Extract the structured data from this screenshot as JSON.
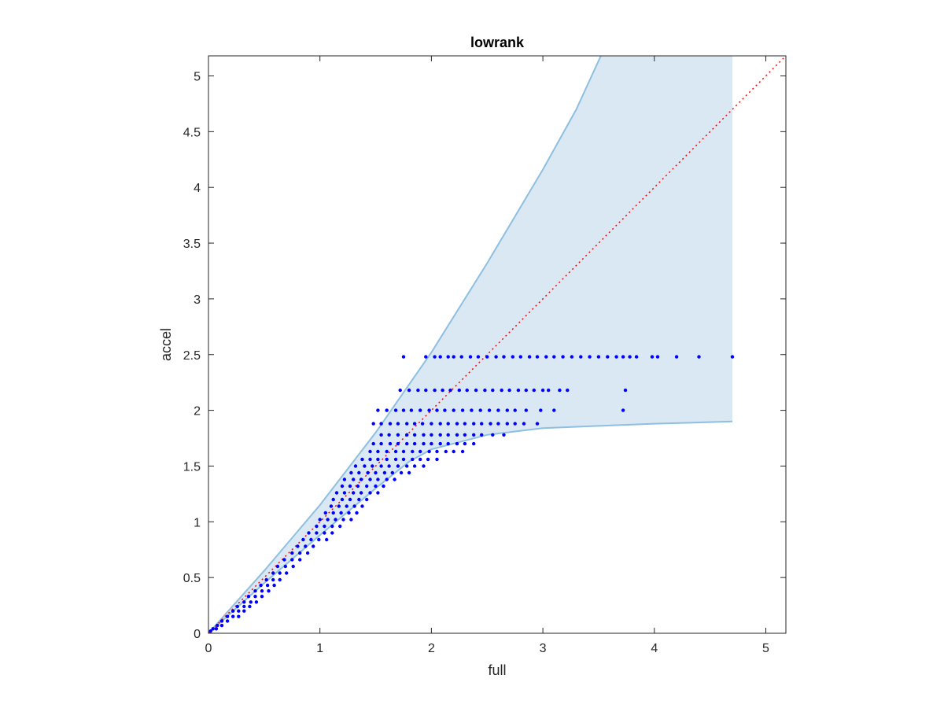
{
  "chart_data": {
    "type": "scatter",
    "title": "lowrank",
    "xlabel": "full",
    "ylabel": "accel",
    "xlim": [
      0,
      5.18
    ],
    "ylim": [
      0,
      5.18
    ],
    "xticks": [
      "0",
      "1",
      "2",
      "3",
      "4",
      "5"
    ],
    "yticks": [
      "0",
      "0.5",
      "1",
      "1.5",
      "2",
      "2.5",
      "3",
      "3.5",
      "4",
      "4.5",
      "5"
    ],
    "xtick_values": [
      0,
      1,
      2,
      3,
      4,
      5
    ],
    "ytick_values": [
      0,
      0.5,
      1,
      1.5,
      2,
      2.5,
      3,
      3.5,
      4,
      4.5,
      5
    ],
    "grid": false,
    "colors": {
      "points": "#0000ff",
      "band_fill": "#d9e8f3",
      "band_edge": "#8fbfe0",
      "reference_line": "#ff0000",
      "axes": "#262626"
    },
    "reference_line": {
      "style": "dotted",
      "from": [
        0,
        0
      ],
      "to": [
        5.18,
        5.18
      ]
    },
    "band": {
      "upper": [
        [
          0,
          0
        ],
        [
          0.5,
          0.56
        ],
        [
          1,
          1.15
        ],
        [
          1.5,
          1.8
        ],
        [
          2,
          2.52
        ],
        [
          2.5,
          3.32
        ],
        [
          3,
          4.16
        ],
        [
          3.3,
          4.7
        ],
        [
          3.52,
          5.18
        ]
      ],
      "lower": [
        [
          0,
          0
        ],
        [
          0.5,
          0.45
        ],
        [
          1,
          0.88
        ],
        [
          1.5,
          1.3
        ],
        [
          1.8,
          1.54
        ],
        [
          2,
          1.65
        ],
        [
          2.5,
          1.78
        ],
        [
          3,
          1.84
        ],
        [
          3.5,
          1.86
        ],
        [
          4,
          1.88
        ],
        [
          4.7,
          1.9
        ]
      ],
      "right_edge_x": 4.7
    },
    "series": [
      {
        "values": [
          [
            1.75,
            2.48
          ],
          [
            1.95,
            2.48
          ],
          [
            2.03,
            2.48
          ],
          [
            2.08,
            2.48
          ],
          [
            2.15,
            2.48
          ],
          [
            2.2,
            2.48
          ],
          [
            2.27,
            2.48
          ],
          [
            2.35,
            2.48
          ],
          [
            2.42,
            2.48
          ],
          [
            2.5,
            2.48
          ],
          [
            2.58,
            2.48
          ],
          [
            2.65,
            2.48
          ],
          [
            2.73,
            2.48
          ],
          [
            2.8,
            2.48
          ],
          [
            2.88,
            2.48
          ],
          [
            2.95,
            2.48
          ],
          [
            3.03,
            2.48
          ],
          [
            3.1,
            2.48
          ],
          [
            3.18,
            2.48
          ],
          [
            3.26,
            2.48
          ],
          [
            3.34,
            2.48
          ],
          [
            3.42,
            2.48
          ],
          [
            3.5,
            2.48
          ],
          [
            3.58,
            2.48
          ],
          [
            3.66,
            2.48
          ],
          [
            3.72,
            2.48
          ],
          [
            3.78,
            2.48
          ],
          [
            3.84,
            2.48
          ],
          [
            3.98,
            2.48
          ],
          [
            4.03,
            2.48
          ],
          [
            4.2,
            2.48
          ],
          [
            4.4,
            2.48
          ],
          [
            4.7,
            2.48
          ],
          [
            1.72,
            2.18
          ],
          [
            1.8,
            2.18
          ],
          [
            1.88,
            2.18
          ],
          [
            1.95,
            2.18
          ],
          [
            2.03,
            2.18
          ],
          [
            2.1,
            2.18
          ],
          [
            2.17,
            2.18
          ],
          [
            2.25,
            2.18
          ],
          [
            2.32,
            2.18
          ],
          [
            2.4,
            2.18
          ],
          [
            2.48,
            2.18
          ],
          [
            2.55,
            2.18
          ],
          [
            2.63,
            2.18
          ],
          [
            2.7,
            2.18
          ],
          [
            2.78,
            2.18
          ],
          [
            2.85,
            2.18
          ],
          [
            2.92,
            2.18
          ],
          [
            3.0,
            2.18
          ],
          [
            3.05,
            2.18
          ],
          [
            3.15,
            2.18
          ],
          [
            3.22,
            2.18
          ],
          [
            3.74,
            2.18
          ],
          [
            1.52,
            2.0
          ],
          [
            1.6,
            2.0
          ],
          [
            1.68,
            2.0
          ],
          [
            1.75,
            2.0
          ],
          [
            1.82,
            2.0
          ],
          [
            1.9,
            2.0
          ],
          [
            1.98,
            2.0
          ],
          [
            2.05,
            2.0
          ],
          [
            2.12,
            2.0
          ],
          [
            2.2,
            2.0
          ],
          [
            2.28,
            2.0
          ],
          [
            2.36,
            2.0
          ],
          [
            2.44,
            2.0
          ],
          [
            2.52,
            2.0
          ],
          [
            2.6,
            2.0
          ],
          [
            2.68,
            2.0
          ],
          [
            2.75,
            2.0
          ],
          [
            2.85,
            2.0
          ],
          [
            2.98,
            2.0
          ],
          [
            3.1,
            2.0
          ],
          [
            3.72,
            2.0
          ],
          [
            1.48,
            1.88
          ],
          [
            1.55,
            1.88
          ],
          [
            1.63,
            1.88
          ],
          [
            1.7,
            1.88
          ],
          [
            1.78,
            1.88
          ],
          [
            1.85,
            1.88
          ],
          [
            1.92,
            1.88
          ],
          [
            2.0,
            1.88
          ],
          [
            2.08,
            1.88
          ],
          [
            2.15,
            1.88
          ],
          [
            2.23,
            1.88
          ],
          [
            2.3,
            1.88
          ],
          [
            2.38,
            1.88
          ],
          [
            2.45,
            1.88
          ],
          [
            2.53,
            1.88
          ],
          [
            2.6,
            1.88
          ],
          [
            2.68,
            1.88
          ],
          [
            2.75,
            1.88
          ],
          [
            2.83,
            1.88
          ],
          [
            2.95,
            1.88
          ],
          [
            1.55,
            1.78
          ],
          [
            1.62,
            1.78
          ],
          [
            1.7,
            1.78
          ],
          [
            1.78,
            1.78
          ],
          [
            1.85,
            1.78
          ],
          [
            1.93,
            1.78
          ],
          [
            2.0,
            1.78
          ],
          [
            2.08,
            1.78
          ],
          [
            2.15,
            1.78
          ],
          [
            2.23,
            1.78
          ],
          [
            2.3,
            1.78
          ],
          [
            2.38,
            1.78
          ],
          [
            2.45,
            1.78
          ],
          [
            2.55,
            1.78
          ],
          [
            2.65,
            1.78
          ],
          [
            1.48,
            1.7
          ],
          [
            1.55,
            1.7
          ],
          [
            1.63,
            1.7
          ],
          [
            1.7,
            1.7
          ],
          [
            1.78,
            1.7
          ],
          [
            1.85,
            1.7
          ],
          [
            1.93,
            1.7
          ],
          [
            2.0,
            1.7
          ],
          [
            2.08,
            1.7
          ],
          [
            2.15,
            1.7
          ],
          [
            2.23,
            1.7
          ],
          [
            2.3,
            1.7
          ],
          [
            2.38,
            1.7
          ],
          [
            1.45,
            1.63
          ],
          [
            1.52,
            1.63
          ],
          [
            1.6,
            1.63
          ],
          [
            1.68,
            1.63
          ],
          [
            1.75,
            1.63
          ],
          [
            1.83,
            1.63
          ],
          [
            1.9,
            1.63
          ],
          [
            1.98,
            1.63
          ],
          [
            2.05,
            1.63
          ],
          [
            2.13,
            1.63
          ],
          [
            2.2,
            1.63
          ],
          [
            2.28,
            1.63
          ],
          [
            1.38,
            1.56
          ],
          [
            1.45,
            1.56
          ],
          [
            1.52,
            1.56
          ],
          [
            1.6,
            1.56
          ],
          [
            1.68,
            1.56
          ],
          [
            1.75,
            1.56
          ],
          [
            1.83,
            1.56
          ],
          [
            1.9,
            1.56
          ],
          [
            1.97,
            1.56
          ],
          [
            2.05,
            1.56
          ],
          [
            1.32,
            1.5
          ],
          [
            1.4,
            1.5
          ],
          [
            1.47,
            1.5
          ],
          [
            1.55,
            1.5
          ],
          [
            1.62,
            1.5
          ],
          [
            1.7,
            1.5
          ],
          [
            1.78,
            1.5
          ],
          [
            1.85,
            1.5
          ],
          [
            1.93,
            1.5
          ],
          [
            1.28,
            1.44
          ],
          [
            1.35,
            1.44
          ],
          [
            1.43,
            1.44
          ],
          [
            1.5,
            1.44
          ],
          [
            1.58,
            1.44
          ],
          [
            1.65,
            1.44
          ],
          [
            1.73,
            1.44
          ],
          [
            1.8,
            1.44
          ],
          [
            1.22,
            1.38
          ],
          [
            1.3,
            1.38
          ],
          [
            1.37,
            1.38
          ],
          [
            1.45,
            1.38
          ],
          [
            1.52,
            1.38
          ],
          [
            1.6,
            1.38
          ],
          [
            1.67,
            1.38
          ],
          [
            1.2,
            1.32
          ],
          [
            1.27,
            1.32
          ],
          [
            1.34,
            1.32
          ],
          [
            1.42,
            1.32
          ],
          [
            1.5,
            1.32
          ],
          [
            1.57,
            1.32
          ],
          [
            1.15,
            1.26
          ],
          [
            1.22,
            1.26
          ],
          [
            1.3,
            1.26
          ],
          [
            1.37,
            1.26
          ],
          [
            1.45,
            1.26
          ],
          [
            1.52,
            1.26
          ],
          [
            1.12,
            1.2
          ],
          [
            1.2,
            1.2
          ],
          [
            1.27,
            1.2
          ],
          [
            1.35,
            1.2
          ],
          [
            1.42,
            1.2
          ],
          [
            1.1,
            1.14
          ],
          [
            1.17,
            1.14
          ],
          [
            1.24,
            1.14
          ],
          [
            1.31,
            1.14
          ],
          [
            1.38,
            1.14
          ],
          [
            1.05,
            1.08
          ],
          [
            1.12,
            1.08
          ],
          [
            1.19,
            1.08
          ],
          [
            1.26,
            1.08
          ],
          [
            1.33,
            1.08
          ],
          [
            1.0,
            1.02
          ],
          [
            1.07,
            1.02
          ],
          [
            1.14,
            1.02
          ],
          [
            1.21,
            1.02
          ],
          [
            1.28,
            1.02
          ],
          [
            0.97,
            0.96
          ],
          [
            1.04,
            0.96
          ],
          [
            1.11,
            0.96
          ],
          [
            1.18,
            0.96
          ],
          [
            0.9,
            0.9
          ],
          [
            0.97,
            0.9
          ],
          [
            1.04,
            0.9
          ],
          [
            1.11,
            0.9
          ],
          [
            0.85,
            0.84
          ],
          [
            0.92,
            0.84
          ],
          [
            0.99,
            0.84
          ],
          [
            1.06,
            0.84
          ],
          [
            0.8,
            0.78
          ],
          [
            0.87,
            0.78
          ],
          [
            0.94,
            0.78
          ],
          [
            0.75,
            0.72
          ],
          [
            0.82,
            0.72
          ],
          [
            0.89,
            0.72
          ],
          [
            0.68,
            0.66
          ],
          [
            0.75,
            0.66
          ],
          [
            0.82,
            0.66
          ],
          [
            0.62,
            0.6
          ],
          [
            0.69,
            0.6
          ],
          [
            0.76,
            0.6
          ],
          [
            0.58,
            0.54
          ],
          [
            0.64,
            0.54
          ],
          [
            0.7,
            0.54
          ],
          [
            0.52,
            0.48
          ],
          [
            0.58,
            0.48
          ],
          [
            0.64,
            0.48
          ],
          [
            0.47,
            0.43
          ],
          [
            0.53,
            0.43
          ],
          [
            0.59,
            0.43
          ],
          [
            0.42,
            0.38
          ],
          [
            0.48,
            0.38
          ],
          [
            0.54,
            0.38
          ],
          [
            0.36,
            0.33
          ],
          [
            0.42,
            0.33
          ],
          [
            0.48,
            0.33
          ],
          [
            0.32,
            0.28
          ],
          [
            0.38,
            0.28
          ],
          [
            0.43,
            0.28
          ],
          [
            0.26,
            0.24
          ],
          [
            0.32,
            0.24
          ],
          [
            0.37,
            0.24
          ],
          [
            0.22,
            0.2
          ],
          [
            0.27,
            0.2
          ],
          [
            0.32,
            0.2
          ],
          [
            0.17,
            0.15
          ],
          [
            0.22,
            0.15
          ],
          [
            0.27,
            0.15
          ],
          [
            0.12,
            0.11
          ],
          [
            0.17,
            0.11
          ],
          [
            0.08,
            0.07
          ],
          [
            0.12,
            0.07
          ],
          [
            0.04,
            0.04
          ],
          [
            0.07,
            0.04
          ],
          [
            0.02,
            0.02
          ]
        ]
      }
    ]
  }
}
